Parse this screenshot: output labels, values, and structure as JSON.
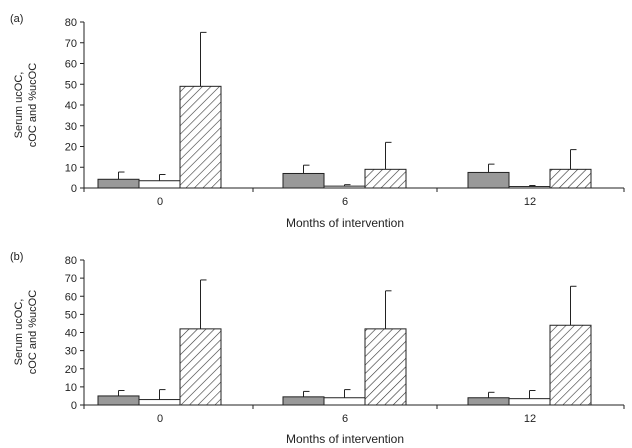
{
  "chart_data": [
    {
      "type": "bar",
      "panel_label": "(a)",
      "categories": [
        "0",
        "6",
        "12"
      ],
      "xlabel": "Months of intervention",
      "ylabel": [
        "Serum ucOC,",
        "cOC and %ucOC"
      ],
      "ylim": [
        0,
        80
      ],
      "yticks": [
        0,
        10,
        20,
        30,
        40,
        50,
        60,
        70,
        80
      ],
      "grid": false,
      "legend": "none",
      "series": [
        {
          "fill": "#999999",
          "pattern": "solid",
          "values": [
            4.2,
            7.0,
            7.5
          ],
          "errors": [
            3.5,
            4.0,
            4.0
          ]
        },
        {
          "fill": "#ffffff",
          "pattern": "solid",
          "values": [
            3.5,
            0.9,
            0.7
          ],
          "errors": [
            3.0,
            0.7,
            0.5
          ]
        },
        {
          "fill": "#ffffff",
          "pattern": "hatch",
          "values": [
            49,
            9,
            9
          ],
          "errors": [
            26,
            13,
            9.5
          ]
        }
      ]
    },
    {
      "type": "bar",
      "panel_label": "(b)",
      "categories": [
        "0",
        "6",
        "12"
      ],
      "xlabel": "Months of intervention",
      "ylabel": [
        "Serum ucOC,",
        "cOC and %ucOC"
      ],
      "ylim": [
        0,
        80
      ],
      "yticks": [
        0,
        10,
        20,
        30,
        40,
        50,
        60,
        70,
        80
      ],
      "grid": false,
      "legend": "none",
      "series": [
        {
          "fill": "#999999",
          "pattern": "solid",
          "values": [
            5.0,
            4.5,
            4.0
          ],
          "errors": [
            3.0,
            3.0,
            3.0
          ]
        },
        {
          "fill": "#ffffff",
          "pattern": "solid",
          "values": [
            3.0,
            4.0,
            3.5
          ],
          "errors": [
            5.5,
            4.5,
            4.5
          ]
        },
        {
          "fill": "#ffffff",
          "pattern": "hatch",
          "values": [
            42,
            42,
            44
          ],
          "errors": [
            27,
            21,
            21.5
          ]
        }
      ]
    }
  ]
}
